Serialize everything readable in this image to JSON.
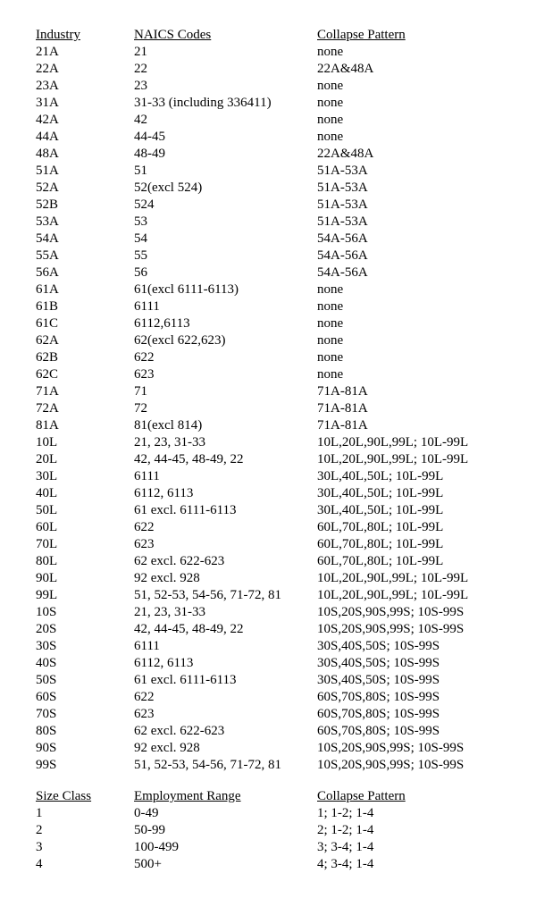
{
  "table1": {
    "headers": [
      "Industry",
      "NAICS Codes",
      "Collapse Pattern"
    ],
    "rows": [
      [
        "21A",
        "21",
        "none"
      ],
      [
        "22A",
        "22",
        "22A&48A"
      ],
      [
        "23A",
        "23",
        "none"
      ],
      [
        "31A",
        "31-33 (including 336411)",
        "none"
      ],
      [
        "42A",
        "42",
        "none"
      ],
      [
        "44A",
        "44-45",
        "none"
      ],
      [
        "48A",
        "48-49",
        "22A&48A"
      ],
      [
        "51A",
        "51",
        "51A-53A"
      ],
      [
        "52A",
        "52(excl 524)",
        "51A-53A"
      ],
      [
        "52B",
        "524",
        "51A-53A"
      ],
      [
        "53A",
        "53",
        "51A-53A"
      ],
      [
        "54A",
        "54",
        "54A-56A"
      ],
      [
        "55A",
        "55",
        "54A-56A"
      ],
      [
        "56A",
        "56",
        "54A-56A"
      ],
      [
        "61A",
        "61(excl 6111-6113)",
        "none"
      ],
      [
        "61B",
        "6111",
        "none"
      ],
      [
        "61C",
        "6112,6113",
        "none"
      ],
      [
        "62A",
        "62(excl 622,623)",
        "none"
      ],
      [
        "62B",
        "622",
        "none"
      ],
      [
        "62C",
        "623",
        "none"
      ],
      [
        "71A",
        "71",
        "71A-81A"
      ],
      [
        "72A",
        "72",
        "71A-81A"
      ],
      [
        "81A",
        "81(excl 814)",
        "71A-81A"
      ],
      [
        "10L",
        "21, 23, 31-33",
        "10L,20L,90L,99L; 10L-99L"
      ],
      [
        "20L",
        "42, 44-45, 48-49, 22",
        "10L,20L,90L,99L; 10L-99L"
      ],
      [
        "30L",
        "6111",
        "30L,40L,50L; 10L-99L"
      ],
      [
        "40L",
        "6112, 6113",
        "30L,40L,50L; 10L-99L"
      ],
      [
        "50L",
        "61 excl. 6111-6113",
        "30L,40L,50L; 10L-99L"
      ],
      [
        "60L",
        "622",
        "60L,70L,80L; 10L-99L"
      ],
      [
        "70L",
        "623",
        "60L,70L,80L; 10L-99L"
      ],
      [
        "80L",
        "62 excl. 622-623",
        "60L,70L,80L; 10L-99L"
      ],
      [
        "90L",
        "92 excl. 928",
        "10L,20L,90L,99L; 10L-99L"
      ],
      [
        "99L",
        "51, 52-53, 54-56, 71-72, 81",
        "10L,20L,90L,99L; 10L-99L"
      ],
      [
        "10S",
        "21, 23, 31-33",
        "10S,20S,90S,99S; 10S-99S"
      ],
      [
        "20S",
        "42, 44-45, 48-49, 22",
        "10S,20S,90S,99S; 10S-99S"
      ],
      [
        "30S",
        "6111",
        "30S,40S,50S; 10S-99S"
      ],
      [
        "40S",
        "6112, 6113",
        "30S,40S,50S; 10S-99S"
      ],
      [
        "50S",
        "61 excl. 6111-6113",
        "30S,40S,50S; 10S-99S"
      ],
      [
        "60S",
        "622",
        "60S,70S,80S; 10S-99S"
      ],
      [
        "70S",
        "623",
        "60S,70S,80S; 10S-99S"
      ],
      [
        "80S",
        "62 excl. 622-623",
        "60S,70S,80S; 10S-99S"
      ],
      [
        "90S",
        "92 excl. 928",
        "10S,20S,90S,99S; 10S-99S"
      ],
      [
        "99S",
        "51, 52-53, 54-56, 71-72, 81",
        "10S,20S,90S,99S; 10S-99S"
      ]
    ]
  },
  "table2": {
    "headers": [
      "Size Class",
      "Employment Range",
      "Collapse Pattern"
    ],
    "rows": [
      [
        "1",
        "0-49",
        "1; 1-2; 1-4"
      ],
      [
        "2",
        "50-99",
        "2; 1-2; 1-4"
      ],
      [
        "3",
        "100-499",
        "3; 3-4; 1-4"
      ],
      [
        "4",
        "500+",
        "4; 3-4; 1-4"
      ]
    ]
  }
}
